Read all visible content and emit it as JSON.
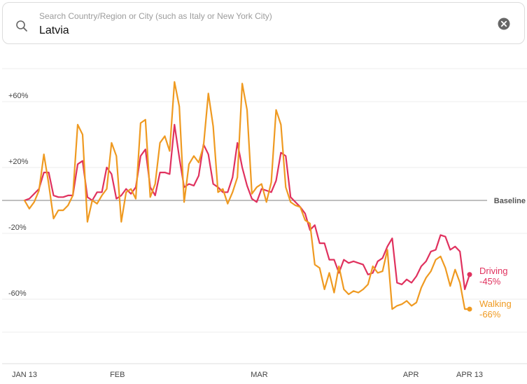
{
  "search": {
    "placeholder": "Search Country/Region or City (such as Italy or New York City)",
    "value": "Latvia"
  },
  "icons": {
    "search": "search-icon",
    "clear": "clear-icon"
  },
  "colors": {
    "driving": "#e0315e",
    "walking": "#ef9a21",
    "baseline": "#999999",
    "grid": "#eeeeee"
  },
  "chart_data": {
    "type": "line",
    "title": "",
    "xlabel": "",
    "ylabel": "",
    "ylim": [
      -80,
      80
    ],
    "grid": true,
    "y_ticks": [
      {
        "value": 60,
        "label": "+60%"
      },
      {
        "value": 20,
        "label": "+20%"
      },
      {
        "value": -20,
        "label": "-20%"
      },
      {
        "value": -60,
        "label": "-60%"
      }
    ],
    "baseline_label": "Baseline",
    "x_start": "2020-01-13",
    "x_end": "2020-04-13",
    "x_ticks": [
      {
        "date": "2020-01-13",
        "label": "JAN 13"
      },
      {
        "date": "2020-02-01",
        "label": "FEB"
      },
      {
        "date": "2020-03-01",
        "label": "MAR"
      },
      {
        "date": "2020-04-01",
        "label": "APR"
      },
      {
        "date": "2020-04-13",
        "label": "APR 13"
      }
    ],
    "series": [
      {
        "name": "Driving",
        "end_value": "-45%",
        "values": [
          0,
          1,
          4,
          7,
          17,
          17,
          3,
          2,
          2,
          3,
          3,
          22,
          24,
          2,
          0,
          5,
          5,
          20,
          16,
          1,
          3,
          7,
          4,
          8,
          27,
          31,
          8,
          3,
          17,
          17,
          16,
          46,
          26,
          8,
          10,
          9,
          15,
          34,
          28,
          10,
          8,
          5,
          5,
          14,
          35,
          20,
          9,
          1,
          -1,
          7,
          6,
          5,
          12,
          29,
          27,
          2,
          -1,
          -4,
          -8,
          -18,
          -15,
          -26,
          -26,
          -36,
          -36,
          -44,
          -36,
          -38,
          -37,
          -38,
          -39,
          -45,
          -44,
          -37,
          -35,
          -28,
          -23,
          -50,
          -51,
          -48,
          -50,
          -46,
          -40,
          -37,
          -31,
          -30,
          -21,
          -22,
          -30,
          -28,
          -31,
          -54,
          -45
        ],
        "end_point": true
      },
      {
        "name": "Walking",
        "end_value": "-66%",
        "values": [
          0,
          -5,
          -1,
          6,
          28,
          10,
          -11,
          -6,
          -6,
          -3,
          3,
          46,
          40,
          -13,
          0,
          -2,
          3,
          7,
          35,
          27,
          -13,
          5,
          7,
          1,
          47,
          49,
          2,
          10,
          35,
          39,
          30,
          72,
          57,
          -1,
          22,
          27,
          23,
          33,
          65,
          45,
          5,
          7,
          -2,
          5,
          14,
          71,
          55,
          4,
          8,
          10,
          -1,
          11,
          55,
          46,
          8,
          -1,
          -3,
          -4,
          -12,
          -14,
          -39,
          -41,
          -54,
          -44,
          -56,
          -40,
          -54,
          -57,
          -55,
          -56,
          -54,
          -51,
          -40,
          -44,
          -43,
          -30,
          -66,
          -64,
          -63,
          -61,
          -64,
          -62,
          -53,
          -47,
          -43,
          -36,
          -34,
          -41,
          -52,
          -42,
          -50,
          -66,
          -66
        ],
        "end_point": true
      }
    ]
  }
}
